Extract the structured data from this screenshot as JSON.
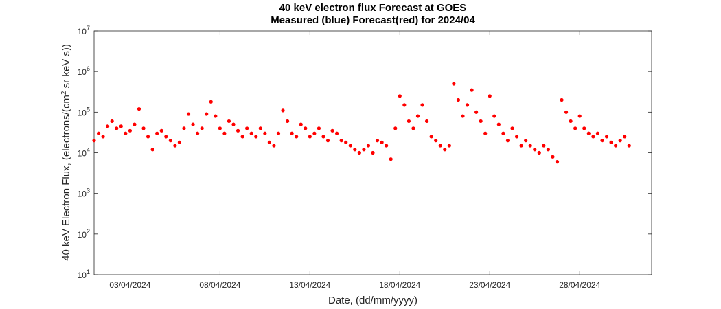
{
  "chart_data": {
    "type": "scatter",
    "title": "40 keV electron flux Forecast at GOES",
    "subtitle": "Measured (blue) Forecast(red) for 2024/04",
    "xlabel": "Date, (dd/mm/yyyy)",
    "ylabel_main": "40 keV Electron Flux, (electrons/(cm",
    "ylabel_sup": "2",
    "ylabel_tail": " sr keV s))",
    "y_scale": "log",
    "ylim": [
      10,
      10000000
    ],
    "xlim": [
      "2024-04-01 00:00",
      "2024-05-02 00:00"
    ],
    "x_ticks": [
      "03/04/2024",
      "08/04/2024",
      "13/04/2024",
      "18/04/2024",
      "23/04/2024",
      "28/04/2024"
    ],
    "x_tick_dates": [
      "2024-04-03",
      "2024-04-08",
      "2024-04-13",
      "2024-04-18",
      "2024-04-23",
      "2024-04-28"
    ],
    "y_ticks": [
      {
        "base": "10",
        "exp": "1",
        "value": 10
      },
      {
        "base": "10",
        "exp": "2",
        "value": 100
      },
      {
        "base": "10",
        "exp": "3",
        "value": 1000
      },
      {
        "base": "10",
        "exp": "4",
        "value": 10000
      },
      {
        "base": "10",
        "exp": "5",
        "value": 100000
      },
      {
        "base": "10",
        "exp": "6",
        "value": 1000000
      },
      {
        "base": "10",
        "exp": "7",
        "value": 10000000
      }
    ],
    "grid": false,
    "series": [
      {
        "marker_color": "#ff0000",
        "points": [
          [
            "2024-04-01 00:00",
            20000
          ],
          [
            "2024-04-01 06:00",
            30000
          ],
          [
            "2024-04-01 12:00",
            25000
          ],
          [
            "2024-04-01 18:00",
            45000
          ],
          [
            "2024-04-02 00:00",
            60000
          ],
          [
            "2024-04-02 06:00",
            40000
          ],
          [
            "2024-04-02 12:00",
            45000
          ],
          [
            "2024-04-02 18:00",
            30000
          ],
          [
            "2024-04-03 00:00",
            35000
          ],
          [
            "2024-04-03 06:00",
            50000
          ],
          [
            "2024-04-03 12:00",
            120000
          ],
          [
            "2024-04-03 18:00",
            40000
          ],
          [
            "2024-04-04 00:00",
            25000
          ],
          [
            "2024-04-04 06:00",
            12000
          ],
          [
            "2024-04-04 12:00",
            30000
          ],
          [
            "2024-04-04 18:00",
            35000
          ],
          [
            "2024-04-05 00:00",
            25000
          ],
          [
            "2024-04-05 06:00",
            20000
          ],
          [
            "2024-04-05 12:00",
            15000
          ],
          [
            "2024-04-05 18:00",
            18000
          ],
          [
            "2024-04-06 00:00",
            40000
          ],
          [
            "2024-04-06 06:00",
            90000
          ],
          [
            "2024-04-06 12:00",
            50000
          ],
          [
            "2024-04-06 18:00",
            30000
          ],
          [
            "2024-04-07 00:00",
            40000
          ],
          [
            "2024-04-07 06:00",
            90000
          ],
          [
            "2024-04-07 12:00",
            180000
          ],
          [
            "2024-04-07 18:00",
            80000
          ],
          [
            "2024-04-08 00:00",
            40000
          ],
          [
            "2024-04-08 06:00",
            30000
          ],
          [
            "2024-04-08 12:00",
            60000
          ],
          [
            "2024-04-08 18:00",
            50000
          ],
          [
            "2024-04-09 00:00",
            35000
          ],
          [
            "2024-04-09 06:00",
            25000
          ],
          [
            "2024-04-09 12:00",
            40000
          ],
          [
            "2024-04-09 18:00",
            30000
          ],
          [
            "2024-04-10 00:00",
            25000
          ],
          [
            "2024-04-10 06:00",
            40000
          ],
          [
            "2024-04-10 12:00",
            30000
          ],
          [
            "2024-04-10 18:00",
            18000
          ],
          [
            "2024-04-11 00:00",
            15000
          ],
          [
            "2024-04-11 06:00",
            30000
          ],
          [
            "2024-04-11 12:00",
            110000
          ],
          [
            "2024-04-11 18:00",
            60000
          ],
          [
            "2024-04-12 00:00",
            30000
          ],
          [
            "2024-04-12 06:00",
            25000
          ],
          [
            "2024-04-12 12:00",
            50000
          ],
          [
            "2024-04-12 18:00",
            40000
          ],
          [
            "2024-04-13 00:00",
            25000
          ],
          [
            "2024-04-13 06:00",
            30000
          ],
          [
            "2024-04-13 12:00",
            40000
          ],
          [
            "2024-04-13 18:00",
            25000
          ],
          [
            "2024-04-14 00:00",
            20000
          ],
          [
            "2024-04-14 06:00",
            35000
          ],
          [
            "2024-04-14 12:00",
            30000
          ],
          [
            "2024-04-14 18:00",
            20000
          ],
          [
            "2024-04-15 00:00",
            18000
          ],
          [
            "2024-04-15 06:00",
            15000
          ],
          [
            "2024-04-15 12:00",
            12000
          ],
          [
            "2024-04-15 18:00",
            10000
          ],
          [
            "2024-04-16 00:00",
            12000
          ],
          [
            "2024-04-16 06:00",
            15000
          ],
          [
            "2024-04-16 12:00",
            10000
          ],
          [
            "2024-04-16 18:00",
            20000
          ],
          [
            "2024-04-17 00:00",
            18000
          ],
          [
            "2024-04-17 06:00",
            15000
          ],
          [
            "2024-04-17 12:00",
            7000
          ],
          [
            "2024-04-17 18:00",
            40000
          ],
          [
            "2024-04-18 00:00",
            250000
          ],
          [
            "2024-04-18 06:00",
            150000
          ],
          [
            "2024-04-18 12:00",
            60000
          ],
          [
            "2024-04-18 18:00",
            40000
          ],
          [
            "2024-04-19 00:00",
            80000
          ],
          [
            "2024-04-19 06:00",
            150000
          ],
          [
            "2024-04-19 12:00",
            60000
          ],
          [
            "2024-04-19 18:00",
            25000
          ],
          [
            "2024-04-20 00:00",
            20000
          ],
          [
            "2024-04-20 06:00",
            15000
          ],
          [
            "2024-04-20 12:00",
            12000
          ],
          [
            "2024-04-20 18:00",
            15000
          ],
          [
            "2024-04-21 00:00",
            500000
          ],
          [
            "2024-04-21 06:00",
            200000
          ],
          [
            "2024-04-21 12:00",
            80000
          ],
          [
            "2024-04-21 18:00",
            150000
          ],
          [
            "2024-04-22 00:00",
            350000
          ],
          [
            "2024-04-22 06:00",
            100000
          ],
          [
            "2024-04-22 12:00",
            60000
          ],
          [
            "2024-04-22 18:00",
            30000
          ],
          [
            "2024-04-23 00:00",
            250000
          ],
          [
            "2024-04-23 06:00",
            80000
          ],
          [
            "2024-04-23 12:00",
            50000
          ],
          [
            "2024-04-23 18:00",
            30000
          ],
          [
            "2024-04-24 00:00",
            20000
          ],
          [
            "2024-04-24 06:00",
            40000
          ],
          [
            "2024-04-24 12:00",
            25000
          ],
          [
            "2024-04-24 18:00",
            15000
          ],
          [
            "2024-04-25 00:00",
            20000
          ],
          [
            "2024-04-25 06:00",
            15000
          ],
          [
            "2024-04-25 12:00",
            12000
          ],
          [
            "2024-04-25 18:00",
            10000
          ],
          [
            "2024-04-26 00:00",
            15000
          ],
          [
            "2024-04-26 06:00",
            12000
          ],
          [
            "2024-04-26 12:00",
            8000
          ],
          [
            "2024-04-26 18:00",
            6000
          ],
          [
            "2024-04-27 00:00",
            200000
          ],
          [
            "2024-04-27 06:00",
            100000
          ],
          [
            "2024-04-27 12:00",
            60000
          ],
          [
            "2024-04-27 18:00",
            40000
          ],
          [
            "2024-04-28 00:00",
            80000
          ],
          [
            "2024-04-28 06:00",
            40000
          ],
          [
            "2024-04-28 12:00",
            30000
          ],
          [
            "2024-04-28 18:00",
            25000
          ],
          [
            "2024-04-29 00:00",
            30000
          ],
          [
            "2024-04-29 06:00",
            20000
          ],
          [
            "2024-04-29 12:00",
            25000
          ],
          [
            "2024-04-29 18:00",
            18000
          ],
          [
            "2024-04-30 00:00",
            15000
          ],
          [
            "2024-04-30 06:00",
            20000
          ],
          [
            "2024-04-30 12:00",
            25000
          ],
          [
            "2024-04-30 18:00",
            15000
          ]
        ]
      }
    ]
  }
}
